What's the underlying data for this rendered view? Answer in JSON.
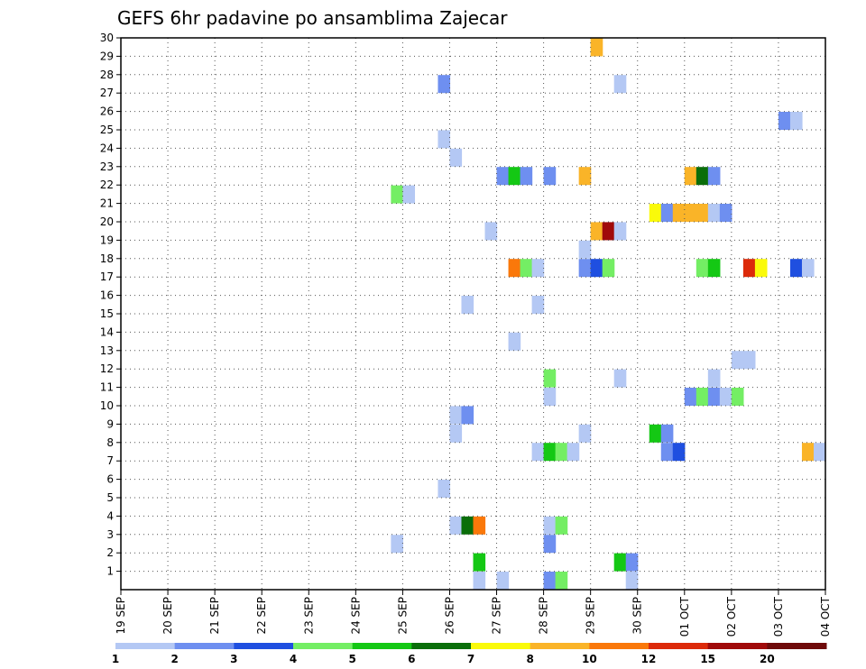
{
  "chart_data": {
    "type": "heatmap",
    "title": "GEFS 6hr padavine po ansamblima Zajecar",
    "xlabel": "",
    "ylabel": "",
    "x_ticks": [
      "19 SEP",
      "20 SEP",
      "21 SEP",
      "22 SEP",
      "23 SEP",
      "24 SEP",
      "25 SEP",
      "26 SEP",
      "27 SEP",
      "28 SEP",
      "29 SEP",
      "30 SEP",
      "01 OCT",
      "02 OCT",
      "03 OCT",
      "04 OCT"
    ],
    "y_ticks": [
      1,
      2,
      3,
      4,
      5,
      6,
      7,
      8,
      9,
      10,
      11,
      12,
      13,
      14,
      15,
      16,
      17,
      18,
      19,
      20,
      21,
      22,
      23,
      24,
      25,
      26,
      27,
      28,
      29,
      30
    ],
    "xlim": [
      0,
      60
    ],
    "ylim": [
      0,
      30
    ],
    "grid": true,
    "colorbar": {
      "levels": [
        "1",
        "2",
        "3",
        "4",
        "5",
        "6",
        "7",
        "8",
        "10",
        "12",
        "15",
        "20"
      ],
      "colors": [
        "#b4c8f4",
        "#6e8ff0",
        "#1f4fe0",
        "#74ee64",
        "#14c814",
        "#0a6e0a",
        "#fafa0a",
        "#fab428",
        "#fa780a",
        "#dc2a0a",
        "#a00a0a",
        "#6e0a0a"
      ]
    },
    "cells": [
      {
        "t": 40,
        "m": 29,
        "c": 7
      },
      {
        "t": 27,
        "m": 27,
        "c": 1
      },
      {
        "t": 42,
        "m": 27,
        "c": 0
      },
      {
        "t": 56,
        "m": 25,
        "c": 1
      },
      {
        "t": 57,
        "m": 25,
        "c": 0
      },
      {
        "t": 27,
        "m": 24,
        "c": 0
      },
      {
        "t": 28,
        "m": 23,
        "c": 0
      },
      {
        "t": 32,
        "m": 22,
        "c": 1
      },
      {
        "t": 33,
        "m": 22,
        "c": 4
      },
      {
        "t": 34,
        "m": 22,
        "c": 1
      },
      {
        "t": 36,
        "m": 22,
        "c": 1
      },
      {
        "t": 39,
        "m": 22,
        "c": 7
      },
      {
        "t": 48,
        "m": 22,
        "c": 7
      },
      {
        "t": 49,
        "m": 22,
        "c": 5
      },
      {
        "t": 50,
        "m": 22,
        "c": 1
      },
      {
        "t": 23,
        "m": 21,
        "c": 3
      },
      {
        "t": 24,
        "m": 21,
        "c": 0
      },
      {
        "t": 45,
        "m": 20,
        "c": 6
      },
      {
        "t": 46,
        "m": 20,
        "c": 1
      },
      {
        "t": 47,
        "m": 20,
        "c": 7
      },
      {
        "t": 48,
        "m": 20,
        "c": 7
      },
      {
        "t": 49,
        "m": 20,
        "c": 7
      },
      {
        "t": 50,
        "m": 20,
        "c": 0
      },
      {
        "t": 51,
        "m": 20,
        "c": 1
      },
      {
        "t": 31,
        "m": 19,
        "c": 0
      },
      {
        "t": 40,
        "m": 19,
        "c": 7
      },
      {
        "t": 41,
        "m": 19,
        "c": 10
      },
      {
        "t": 42,
        "m": 19,
        "c": 0
      },
      {
        "t": 39,
        "m": 18,
        "c": 0
      },
      {
        "t": 33,
        "m": 17,
        "c": 8
      },
      {
        "t": 34,
        "m": 17,
        "c": 3
      },
      {
        "t": 35,
        "m": 17,
        "c": 0
      },
      {
        "t": 39,
        "m": 17,
        "c": 1
      },
      {
        "t": 40,
        "m": 17,
        "c": 2
      },
      {
        "t": 41,
        "m": 17,
        "c": 3
      },
      {
        "t": 49,
        "m": 17,
        "c": 3
      },
      {
        "t": 50,
        "m": 17,
        "c": 4
      },
      {
        "t": 53,
        "m": 17,
        "c": 9
      },
      {
        "t": 54,
        "m": 17,
        "c": 6
      },
      {
        "t": 57,
        "m": 17,
        "c": 2
      },
      {
        "t": 58,
        "m": 17,
        "c": 0
      },
      {
        "t": 29,
        "m": 15,
        "c": 0
      },
      {
        "t": 35,
        "m": 15,
        "c": 0
      },
      {
        "t": 33,
        "m": 13,
        "c": 0
      },
      {
        "t": 52,
        "m": 12,
        "c": 0
      },
      {
        "t": 53,
        "m": 12,
        "c": 0
      },
      {
        "t": 36,
        "m": 11,
        "c": 3
      },
      {
        "t": 42,
        "m": 11,
        "c": 0
      },
      {
        "t": 50,
        "m": 11,
        "c": 0
      },
      {
        "t": 36,
        "m": 10,
        "c": 0
      },
      {
        "t": 48,
        "m": 10,
        "c": 1
      },
      {
        "t": 49,
        "m": 10,
        "c": 3
      },
      {
        "t": 50,
        "m": 10,
        "c": 1
      },
      {
        "t": 51,
        "m": 10,
        "c": 0
      },
      {
        "t": 52,
        "m": 10,
        "c": 3
      },
      {
        "t": 28,
        "m": 9,
        "c": 0
      },
      {
        "t": 29,
        "m": 9,
        "c": 1
      },
      {
        "t": 28,
        "m": 8,
        "c": 0
      },
      {
        "t": 39,
        "m": 8,
        "c": 0
      },
      {
        "t": 45,
        "m": 8,
        "c": 4
      },
      {
        "t": 46,
        "m": 8,
        "c": 1
      },
      {
        "t": 35,
        "m": 7,
        "c": 0
      },
      {
        "t": 36,
        "m": 7,
        "c": 4
      },
      {
        "t": 37,
        "m": 7,
        "c": 3
      },
      {
        "t": 38,
        "m": 7,
        "c": 0
      },
      {
        "t": 46,
        "m": 7,
        "c": 1
      },
      {
        "t": 47,
        "m": 7,
        "c": 2
      },
      {
        "t": 58,
        "m": 7,
        "c": 7
      },
      {
        "t": 59,
        "m": 7,
        "c": 0
      },
      {
        "t": 27,
        "m": 5,
        "c": 0
      },
      {
        "t": 28,
        "m": 3,
        "c": 0
      },
      {
        "t": 29,
        "m": 3,
        "c": 5
      },
      {
        "t": 30,
        "m": 3,
        "c": 8
      },
      {
        "t": 36,
        "m": 3,
        "c": 0
      },
      {
        "t": 37,
        "m": 3,
        "c": 3
      },
      {
        "t": 23,
        "m": 2,
        "c": 0
      },
      {
        "t": 36,
        "m": 2,
        "c": 1
      },
      {
        "t": 30,
        "m": 1,
        "c": 4
      },
      {
        "t": 42,
        "m": 1,
        "c": 4
      },
      {
        "t": 43,
        "m": 1,
        "c": 1
      },
      {
        "t": 30,
        "m": 0,
        "c": 0
      },
      {
        "t": 32,
        "m": 0,
        "c": 0
      },
      {
        "t": 36,
        "m": 0,
        "c": 1
      },
      {
        "t": 37,
        "m": 0,
        "c": 3
      },
      {
        "t": 43,
        "m": 0,
        "c": 0
      }
    ]
  }
}
